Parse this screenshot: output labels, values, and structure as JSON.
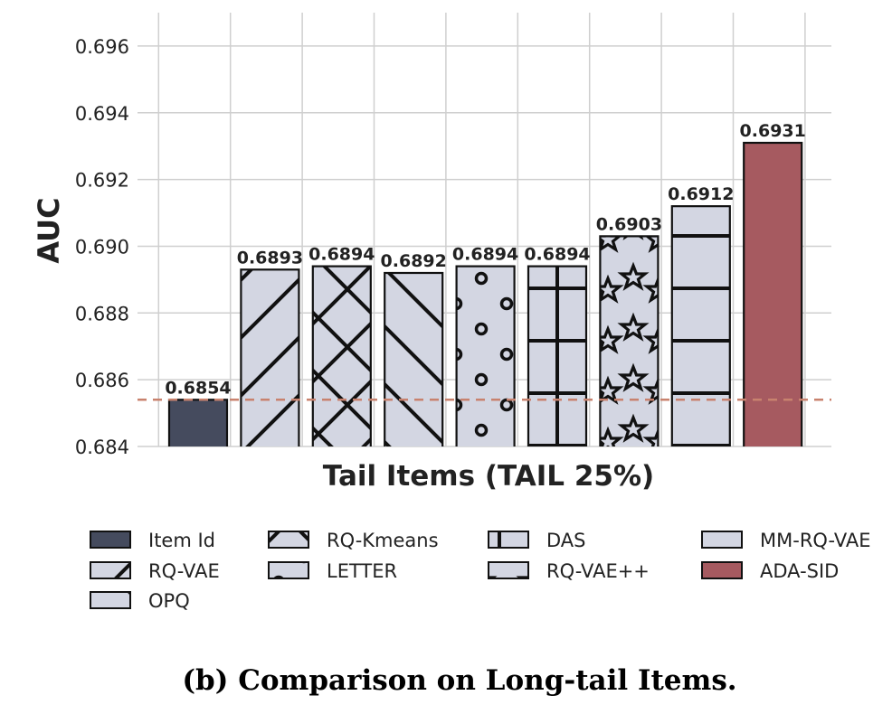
{
  "chart_data": {
    "type": "bar",
    "xlabel": "Tail Items (TAIL 25%)",
    "ylabel": "AUC",
    "ylim": [
      0.684,
      0.697
    ],
    "yticks": [
      "0.684",
      "0.686",
      "0.688",
      "0.690",
      "0.692",
      "0.694",
      "0.696"
    ],
    "grid": true,
    "baseline": 0.6854,
    "series": [
      {
        "name": "Item Id",
        "value": 0.6854,
        "label": "0.6854",
        "color": "#454B5E",
        "hatch": "none"
      },
      {
        "name": "RQ-VAE",
        "value": 0.6893,
        "label": "0.6893",
        "color": "#D3D6E2",
        "hatch": "slash"
      },
      {
        "name": "RQ-Kmeans",
        "value": 0.6894,
        "label": "0.6894",
        "color": "#D3D6E2",
        "hatch": "cross"
      },
      {
        "name": "OPQ",
        "value": 0.6892,
        "label": "0.6892",
        "color": "#D3D6E2",
        "hatch": "backslash"
      },
      {
        "name": "LETTER",
        "value": 0.6894,
        "label": "0.6894",
        "color": "#D3D6E2",
        "hatch": "circles"
      },
      {
        "name": "DAS",
        "value": 0.6894,
        "label": "0.6894",
        "color": "#D3D6E2",
        "hatch": "plus"
      },
      {
        "name": "RQ-VAE++",
        "value": 0.6903,
        "label": "0.6903",
        "color": "#D3D6E2",
        "hatch": "stars"
      },
      {
        "name": "MM-RQ-VAE",
        "value": 0.6912,
        "label": "0.6912",
        "color": "#D3D6E2",
        "hatch": "hlines"
      },
      {
        "name": "ADA-SID",
        "value": 0.6931,
        "label": "0.6931",
        "color": "#A65A60",
        "hatch": "none"
      }
    ],
    "legend": {
      "placement": "below",
      "columns": [
        [
          "Item Id",
          "RQ-VAE",
          "OPQ"
        ],
        [
          "RQ-Kmeans",
          "LETTER"
        ],
        [
          "DAS",
          "RQ-VAE++"
        ],
        [
          "MM-RQ-VAE",
          "ADA-SID"
        ]
      ]
    },
    "baseline_color": "#C8826E"
  },
  "caption": "(b) Comparison on Long-tail Items."
}
